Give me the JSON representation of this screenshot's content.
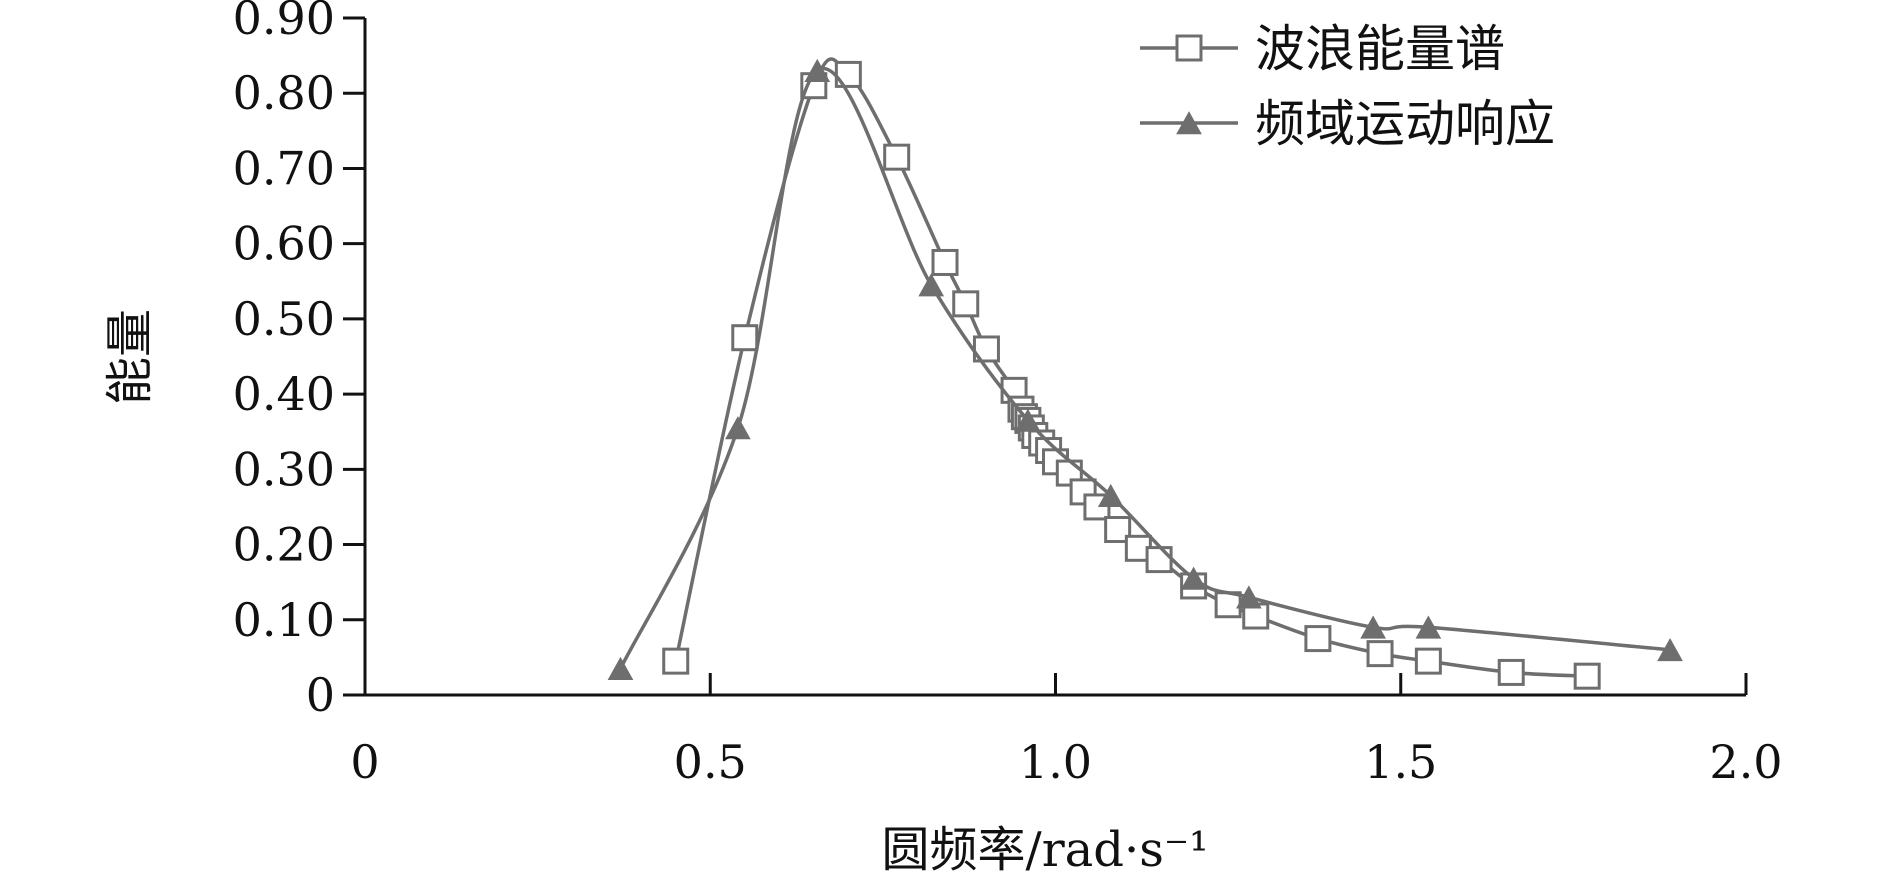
{
  "chart_data": {
    "type": "line",
    "xlabel": "圆频率/rad·s⁻¹",
    "ylabel": "能量",
    "xlim": [
      0,
      2.0
    ],
    "ylim": [
      0,
      0.9
    ],
    "x_ticks": [
      {
        "value": 0,
        "label": "0"
      },
      {
        "value": 0.5,
        "label": "0.5"
      },
      {
        "value": 1.0,
        "label": "1.0"
      },
      {
        "value": 1.5,
        "label": "1.5"
      },
      {
        "value": 2.0,
        "label": "2.0"
      }
    ],
    "y_ticks": [
      {
        "value": 0,
        "label": "0"
      },
      {
        "value": 0.1,
        "label": "0.10"
      },
      {
        "value": 0.2,
        "label": "0.20"
      },
      {
        "value": 0.3,
        "label": "0.30"
      },
      {
        "value": 0.4,
        "label": "0.40"
      },
      {
        "value": 0.5,
        "label": "0.50"
      },
      {
        "value": 0.6,
        "label": "0.60"
      },
      {
        "value": 0.7,
        "label": "0.70"
      },
      {
        "value": 0.8,
        "label": "0.80"
      },
      {
        "value": 0.9,
        "label": "0.90"
      }
    ],
    "legend_position": "top-right",
    "series": [
      {
        "name": "波浪能量谱",
        "marker": "square-open",
        "color": "#6e6e6e",
        "x": [
          0.45,
          0.55,
          0.65,
          0.7,
          0.77,
          0.84,
          0.87,
          0.9,
          0.94,
          0.95,
          0.955,
          0.96,
          0.965,
          0.97,
          0.98,
          0.99,
          1.0,
          1.02,
          1.04,
          1.06,
          1.09,
          1.12,
          1.15,
          1.2,
          1.25,
          1.29,
          1.38,
          1.47,
          1.54,
          1.66,
          1.77
        ],
        "y": [
          0.045,
          0.475,
          0.81,
          0.825,
          0.715,
          0.575,
          0.52,
          0.46,
          0.405,
          0.38,
          0.37,
          0.365,
          0.355,
          0.345,
          0.335,
          0.325,
          0.31,
          0.295,
          0.27,
          0.25,
          0.22,
          0.195,
          0.18,
          0.145,
          0.12,
          0.105,
          0.075,
          0.055,
          0.045,
          0.03,
          0.025
        ]
      },
      {
        "name": "频域运动响应",
        "marker": "triangle-filled",
        "color": "#6e6e6e",
        "x": [
          0.37,
          0.54,
          0.655,
          0.82,
          0.96,
          1.08,
          1.2,
          1.28,
          1.46,
          1.54,
          1.89
        ],
        "y": [
          0.035,
          0.355,
          0.83,
          0.545,
          0.365,
          0.265,
          0.155,
          0.13,
          0.09,
          0.09,
          0.06
        ]
      }
    ]
  }
}
